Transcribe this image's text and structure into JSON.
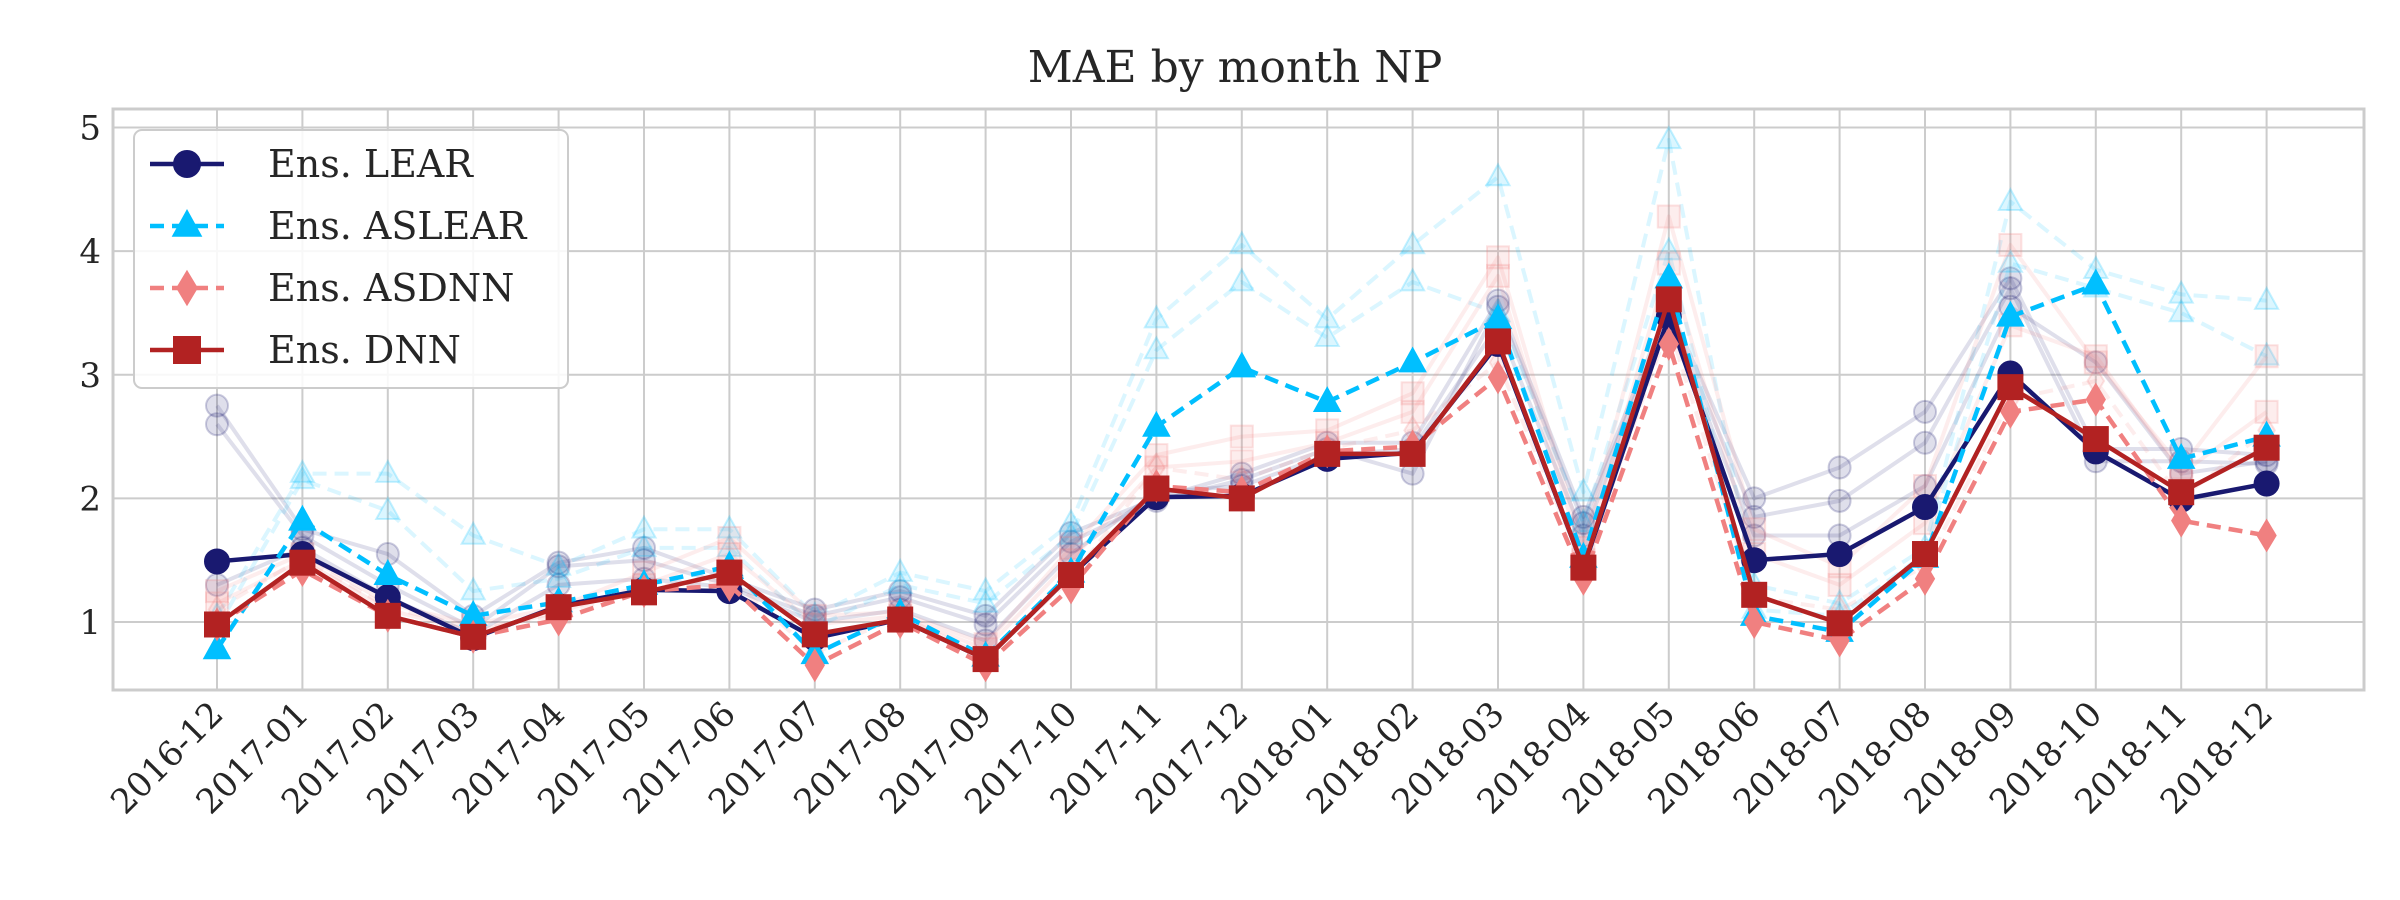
{
  "chart_data": {
    "type": "line",
    "title": "MAE by month NP",
    "xlabel": "",
    "ylabel": "",
    "categories": [
      "2016-12",
      "2017-01",
      "2017-02",
      "2017-03",
      "2017-04",
      "2017-05",
      "2017-06",
      "2017-07",
      "2017-08",
      "2017-09",
      "2017-10",
      "2017-11",
      "2017-12",
      "2018-01",
      "2018-02",
      "2018-03",
      "2018-04",
      "2018-05",
      "2018-06",
      "2018-07",
      "2018-08",
      "2018-09",
      "2018-10",
      "2018-11",
      "2018-12"
    ],
    "ylim": [
      0.45,
      5.15
    ],
    "yticks": [
      1,
      2,
      3,
      4,
      5
    ],
    "grid": true,
    "legend_position": "top-left",
    "series": [
      {
        "name": "Ens. LEAR",
        "color": "#191970",
        "marker": "circle",
        "dash": "solid",
        "values": [
          1.49,
          1.55,
          1.2,
          0.87,
          1.13,
          1.26,
          1.25,
          0.87,
          1.02,
          0.7,
          1.38,
          2.01,
          2.02,
          2.32,
          2.37,
          3.25,
          1.44,
          3.47,
          1.5,
          1.55,
          1.93,
          3.01,
          2.38,
          1.99,
          2.12
        ]
      },
      {
        "name": "Ens. ASLEAR",
        "color": "#00bfff",
        "marker": "triangle",
        "dash": "dashed",
        "values": [
          0.78,
          1.82,
          1.38,
          1.05,
          1.16,
          1.3,
          1.45,
          0.74,
          1.07,
          0.72,
          1.4,
          2.58,
          3.06,
          2.78,
          3.1,
          3.45,
          1.52,
          3.78,
          1.05,
          0.92,
          1.52,
          3.47,
          3.73,
          2.32,
          2.5
        ]
      },
      {
        "name": "Ens. ASDNN",
        "color": "#f08080",
        "marker": "diamond",
        "dash": "dashed",
        "values": [
          0.98,
          1.42,
          1.05,
          0.88,
          1.02,
          1.25,
          1.3,
          0.65,
          1.0,
          0.65,
          1.28,
          2.1,
          2.05,
          2.38,
          2.42,
          2.98,
          1.35,
          3.25,
          1.0,
          0.85,
          1.35,
          2.7,
          2.8,
          1.82,
          1.7
        ]
      },
      {
        "name": "Ens. DNN",
        "color": "#b22222",
        "marker": "square",
        "dash": "solid",
        "values": [
          0.98,
          1.48,
          1.05,
          0.88,
          1.12,
          1.24,
          1.4,
          0.9,
          1.02,
          0.7,
          1.38,
          2.08,
          2.0,
          2.36,
          2.36,
          3.27,
          1.44,
          3.61,
          1.22,
          0.99,
          1.55,
          2.9,
          2.48,
          2.05,
          2.41
        ]
      }
    ],
    "faded_series": [
      {
        "color": "#191970",
        "marker": "circle",
        "dash": "solid",
        "values": [
          2.75,
          1.75,
          1.55,
          1.05,
          1.48,
          1.6,
          1.35,
          1.1,
          1.25,
          1.05,
          1.72,
          2.0,
          2.2,
          2.45,
          2.45,
          3.6,
          1.85,
          3.55,
          2.0,
          2.25,
          2.7,
          3.78,
          2.4,
          2.4,
          2.35
        ]
      },
      {
        "color": "#191970",
        "marker": "circle",
        "dash": "solid",
        "values": [
          2.6,
          1.7,
          1.3,
          0.95,
          1.45,
          1.5,
          1.3,
          1.05,
          1.2,
          0.98,
          1.65,
          1.98,
          2.15,
          2.4,
          2.2,
          3.55,
          1.8,
          3.5,
          1.85,
          1.98,
          2.45,
          3.7,
          2.3,
          2.3,
          2.28
        ]
      },
      {
        "color": "#191970",
        "marker": "circle",
        "dash": "solid",
        "values": [
          1.3,
          1.6,
          1.2,
          0.9,
          1.3,
          1.35,
          1.28,
          1.0,
          1.1,
          0.85,
          1.55,
          2.05,
          2.1,
          2.35,
          2.4,
          3.4,
          1.7,
          3.45,
          1.7,
          1.7,
          2.1,
          3.55,
          3.1,
          2.2,
          2.3
        ]
      },
      {
        "color": "#00bfff",
        "marker": "triangle",
        "dash": "dashed",
        "values": [
          1.05,
          2.2,
          2.2,
          1.7,
          1.45,
          1.75,
          1.75,
          1.05,
          1.4,
          1.25,
          1.8,
          3.45,
          4.05,
          3.45,
          4.05,
          4.6,
          2.05,
          4.9,
          1.3,
          1.15,
          1.6,
          4.4,
          3.85,
          3.65,
          3.6
        ]
      },
      {
        "color": "#00bfff",
        "marker": "triangle",
        "dash": "dashed",
        "values": [
          0.95,
          2.15,
          1.9,
          1.25,
          1.35,
          1.6,
          1.6,
          0.95,
          1.3,
          1.15,
          1.7,
          3.2,
          3.75,
          3.3,
          3.75,
          3.5,
          1.8,
          4.0,
          1.1,
          1.05,
          1.55,
          3.9,
          3.7,
          3.5,
          3.15
        ]
      },
      {
        "color": "#f08080",
        "marker": "square",
        "dash": "solid",
        "values": [
          1.25,
          1.55,
          1.15,
          0.98,
          1.12,
          1.4,
          1.68,
          1.05,
          1.08,
          0.82,
          1.6,
          2.35,
          2.5,
          2.55,
          2.85,
          3.95,
          1.6,
          4.28,
          1.75,
          1.45,
          2.1,
          4.05,
          3.1,
          2.25,
          3.15
        ]
      },
      {
        "color": "#f08080",
        "marker": "square",
        "dash": "solid",
        "values": [
          1.15,
          1.5,
          1.1,
          0.92,
          1.08,
          1.3,
          1.55,
          0.98,
          1.05,
          0.78,
          1.5,
          2.25,
          2.3,
          2.45,
          2.7,
          3.8,
          1.5,
          3.9,
          1.55,
          1.3,
          1.8,
          3.4,
          3.15,
          2.2,
          2.7
        ]
      },
      {
        "color": "#f08080",
        "marker": "diamond",
        "dash": "dashed",
        "values": [
          1.1,
          1.52,
          1.12,
          0.95,
          1.05,
          1.28,
          1.35,
          0.75,
          1.05,
          0.72,
          1.35,
          2.25,
          2.15,
          2.4,
          2.55,
          3.1,
          1.45,
          3.4,
          1.2,
          1.1,
          1.45,
          2.8,
          2.95,
          2.0,
          2.55
        ]
      }
    ]
  }
}
